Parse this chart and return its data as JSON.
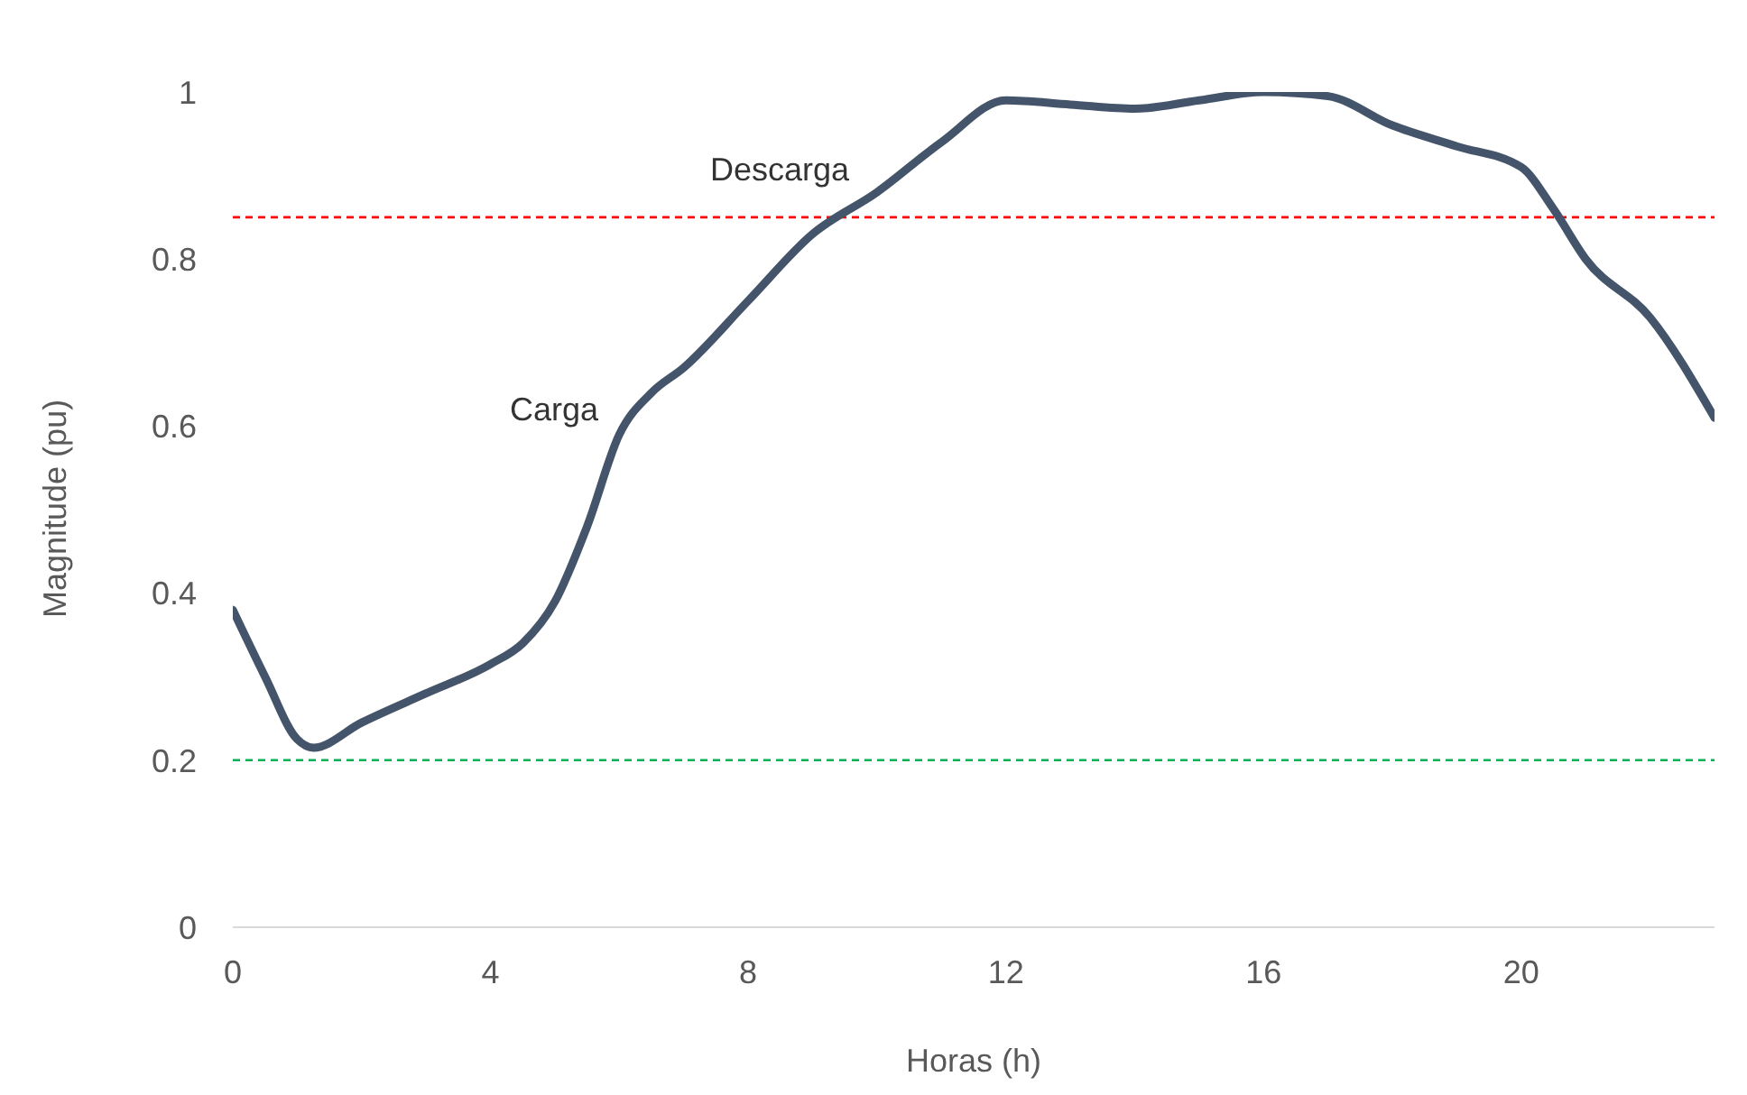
{
  "chart_data": {
    "type": "line",
    "xlabel": "Horas (h)",
    "ylabel": "Magnitude (pu)",
    "xlim": [
      0,
      23
    ],
    "xticks": [
      0,
      4,
      8,
      12,
      16,
      20
    ],
    "ylim": [
      0,
      1
    ],
    "yticks": [
      0,
      0.2,
      0.4,
      0.6,
      0.8,
      1
    ],
    "grid": false,
    "legend": false,
    "marker": "none",
    "line_style": "solid",
    "series": [
      {
        "color": "#44546a",
        "x": [
          0,
          0.5,
          1,
          1.25,
          2,
          3,
          4,
          4.5,
          5,
          5.5,
          6,
          6.5,
          7,
          8,
          9,
          10,
          11,
          12,
          13,
          14,
          15,
          16,
          17,
          18,
          19,
          20,
          20.5,
          21,
          22,
          23
        ],
        "values": [
          0.38,
          0.3,
          0.225,
          0.215,
          0.245,
          0.28,
          0.315,
          0.34,
          0.39,
          0.48,
          0.59,
          0.64,
          0.67,
          0.75,
          0.83,
          0.88,
          0.94,
          0.99,
          0.985,
          0.98,
          0.99,
          1.0,
          0.995,
          0.96,
          0.935,
          0.91,
          0.86,
          0.8,
          0.73,
          0.61
        ]
      }
    ],
    "ref_lines": [
      {
        "axis": "y",
        "value": 0.85,
        "color": "#ff0000",
        "line_style": "dashed"
      },
      {
        "axis": "y",
        "value": 0.2,
        "color": "#00b050",
        "line_style": "dashed"
      }
    ],
    "annotations": [
      "Descarga",
      "Carga"
    ]
  }
}
